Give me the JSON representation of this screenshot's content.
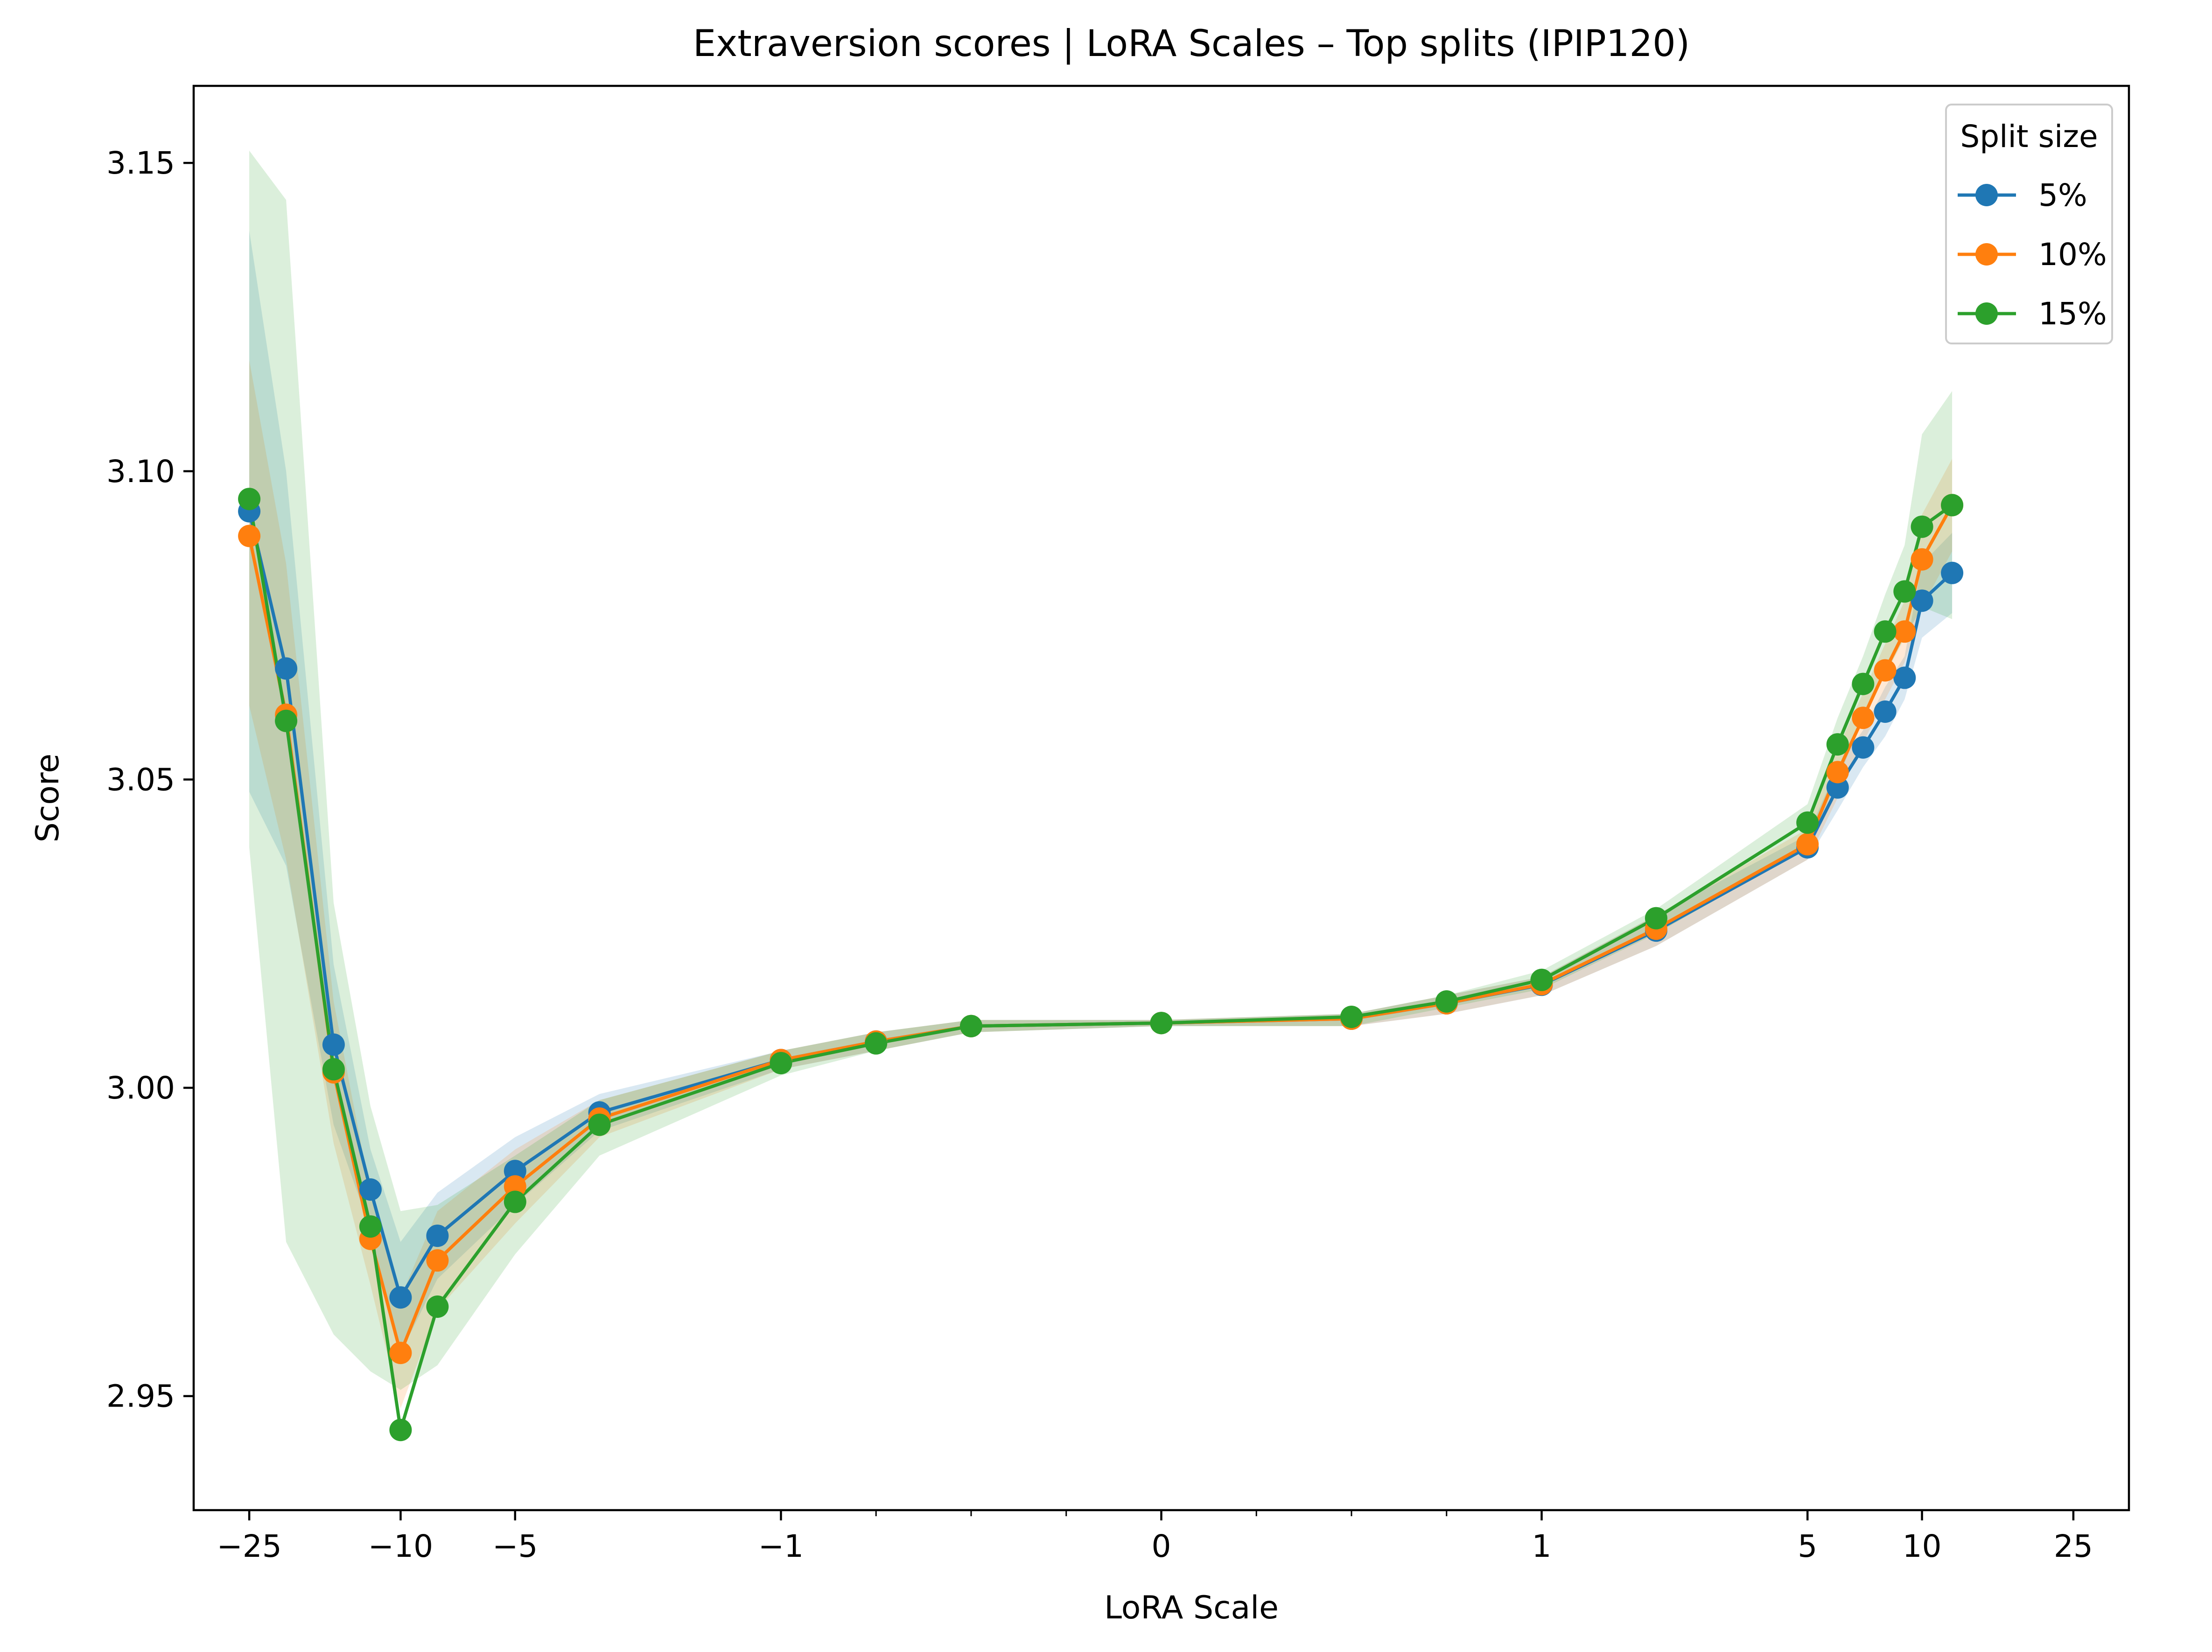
{
  "chart_data": {
    "type": "line",
    "title": "Extraversion scores | LoRA Scales – Top splits (IPIP120)",
    "xlabel": "LoRA Scale",
    "ylabel": "Score",
    "x_scale": "symlog",
    "xlim": [
      -35,
      35
    ],
    "ylim": [
      2.9315,
      3.1625
    ],
    "x_ticks": [
      {
        "value": -25,
        "label": "−25"
      },
      {
        "value": -10,
        "label": "−10"
      },
      {
        "value": -5,
        "label": "−5"
      },
      {
        "value": -1,
        "label": "−1"
      },
      {
        "value": 0,
        "label": "0"
      },
      {
        "value": 1,
        "label": "1"
      },
      {
        "value": 5,
        "label": "5"
      },
      {
        "value": 10,
        "label": "10"
      },
      {
        "value": 25,
        "label": "25"
      }
    ],
    "y_ticks": [
      {
        "value": 2.95,
        "label": "2.95"
      },
      {
        "value": 3.0,
        "label": "3.00"
      },
      {
        "value": 3.05,
        "label": "3.05"
      },
      {
        "value": 3.1,
        "label": "3.10"
      },
      {
        "value": 3.15,
        "label": "3.15"
      }
    ],
    "x": [
      -25,
      -20,
      -15,
      -12,
      -10,
      -8,
      -5,
      -3,
      -1,
      -0.75,
      -0.5,
      0,
      0.5,
      0.75,
      1,
      2,
      5,
      6,
      7,
      8,
      9,
      10,
      12,
      15,
      18,
      20,
      25
    ],
    "series": [
      {
        "name": "5%",
        "color": "#1f77b4",
        "values": [
          3.0935,
          3.068,
          3.007,
          2.9835,
          2.966,
          2.976,
          2.9865,
          2.996,
          3.0045,
          3.0075,
          3.01,
          3.0105,
          3.0112,
          3.0137,
          3.0167,
          3.0255,
          3.039,
          3.0487,
          3.0552,
          3.061,
          3.0665,
          3.079,
          3.0835,
          null,
          null,
          null,
          null
        ],
        "band_upper": [
          3.139,
          3.1,
          3.02,
          2.99,
          2.975,
          2.983,
          2.992,
          2.999,
          3.006,
          3.009,
          3.011,
          3.011,
          3.012,
          3.015,
          3.018,
          3.028,
          3.041,
          3.052,
          3.058,
          3.065,
          3.07,
          3.085,
          3.09,
          null,
          null,
          null,
          null
        ],
        "band_lower": [
          3.048,
          3.036,
          2.994,
          2.977,
          2.957,
          2.969,
          2.981,
          2.993,
          3.003,
          3.006,
          3.009,
          3.01,
          3.01,
          3.012,
          3.015,
          3.023,
          3.037,
          3.045,
          3.052,
          3.057,
          3.063,
          3.073,
          3.077,
          null,
          null,
          null,
          null
        ]
      },
      {
        "name": "10%",
        "color": "#ff7f0e",
        "values": [
          3.0895,
          3.0605,
          3.0025,
          2.9755,
          2.957,
          2.972,
          2.984,
          2.995,
          3.0045,
          3.0075,
          3.01,
          3.0105,
          3.0112,
          3.0137,
          3.0168,
          3.0258,
          3.0395,
          3.0512,
          3.06,
          3.0677,
          3.074,
          3.0857,
          3.0945,
          null,
          null,
          null,
          null
        ],
        "band_upper": [
          3.118,
          3.085,
          3.014,
          2.983,
          2.966,
          2.98,
          2.99,
          2.998,
          3.006,
          3.009,
          3.011,
          3.011,
          3.012,
          3.015,
          3.018,
          3.028,
          3.042,
          3.055,
          3.064,
          3.072,
          3.079,
          3.093,
          3.102,
          null,
          null,
          null,
          null
        ],
        "band_lower": [
          3.062,
          3.037,
          2.991,
          2.968,
          2.948,
          2.964,
          2.978,
          2.992,
          3.003,
          3.006,
          3.009,
          3.01,
          3.01,
          3.012,
          3.015,
          3.023,
          3.037,
          3.047,
          3.056,
          3.063,
          3.069,
          3.078,
          3.087,
          null,
          null,
          null,
          null
        ]
      },
      {
        "name": "15%",
        "color": "#2ca02c",
        "values": [
          3.0955,
          3.0595,
          3.003,
          2.9775,
          2.9445,
          2.9645,
          2.9815,
          2.994,
          3.004,
          3.0072,
          3.01,
          3.0105,
          3.0115,
          3.014,
          3.0175,
          3.0275,
          3.043,
          3.0557,
          3.0655,
          3.074,
          3.0805,
          3.091,
          3.0945,
          null,
          null,
          null,
          null
        ],
        "band_upper": [
          3.152,
          3.144,
          3.03,
          2.997,
          2.98,
          2.981,
          2.989,
          2.998,
          3.006,
          3.009,
          3.011,
          3.011,
          3.012,
          3.015,
          3.019,
          3.029,
          3.046,
          3.06,
          3.07,
          3.08,
          3.088,
          3.106,
          3.113,
          null,
          null,
          null,
          null
        ],
        "band_lower": [
          3.039,
          2.975,
          2.96,
          2.954,
          2.951,
          2.955,
          2.973,
          2.989,
          3.002,
          3.006,
          3.009,
          3.01,
          3.01,
          3.013,
          3.016,
          3.025,
          3.039,
          3.05,
          3.06,
          3.067,
          3.073,
          3.078,
          3.076,
          null,
          null,
          null,
          null
        ]
      }
    ],
    "legend": {
      "title": "Split size",
      "position": "top-right"
    },
    "grid": false
  }
}
